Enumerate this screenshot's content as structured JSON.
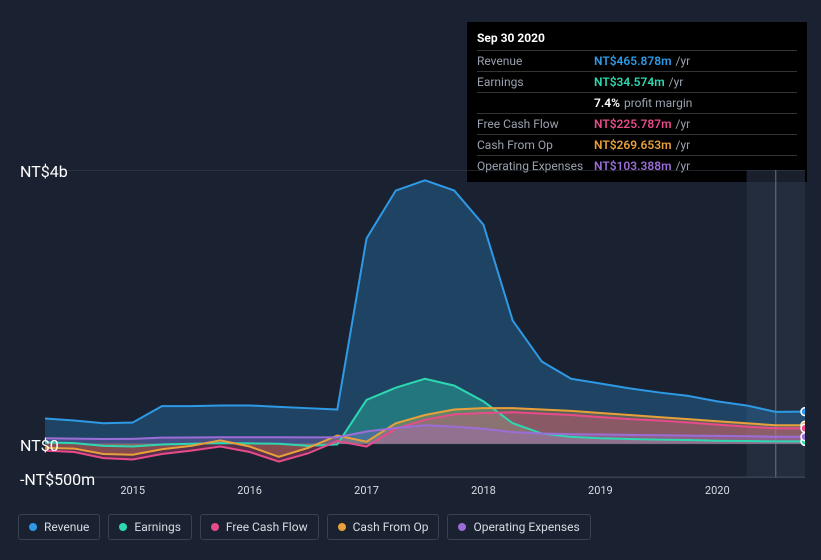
{
  "tooltip": {
    "title": "Sep 30 2020",
    "rows": [
      {
        "label": "Revenue",
        "value": "NT$465.878m",
        "unit": "/yr",
        "color": "#2e9ae6"
      },
      {
        "label": "Earnings",
        "value": "NT$34.574m",
        "unit": "/yr",
        "color": "#2dd8b1"
      },
      {
        "label": "",
        "value": "7.4%",
        "unit": "profit margin",
        "color": "#ffffff"
      },
      {
        "label": "Free Cash Flow",
        "value": "NT$225.787m",
        "unit": "/yr",
        "color": "#e84b8a"
      },
      {
        "label": "Cash From Op",
        "value": "NT$269.653m",
        "unit": "/yr",
        "color": "#e8a13a"
      },
      {
        "label": "Operating Expenses",
        "value": "NT$103.388m",
        "unit": "/yr",
        "color": "#9b6dd7"
      }
    ]
  },
  "chart": {
    "type": "area",
    "background_color": "#1a2231",
    "grid_color": "#3a4252",
    "axis_font_size": 11,
    "currency_prefix": "NT$",
    "ylim": [
      -500,
      4000
    ],
    "y_ticks": [
      {
        "v": 4000,
        "label": "NT$4b"
      },
      {
        "v": 0,
        "label": "NT$0"
      },
      {
        "v": -500,
        "label": "-NT$500m"
      }
    ],
    "x_years": [
      2015,
      2016,
      2017,
      2018,
      2019,
      2020
    ],
    "x_points": [
      "2014-06",
      "2014-09",
      "2014-12",
      "2015-03",
      "2015-06",
      "2015-09",
      "2015-12",
      "2016-03",
      "2016-06",
      "2016-09",
      "2016-12",
      "2017-03",
      "2017-06",
      "2017-09",
      "2017-12",
      "2018-03",
      "2018-06",
      "2018-09",
      "2018-12",
      "2019-03",
      "2019-06",
      "2019-09",
      "2019-12",
      "2020-03",
      "2020-06",
      "2020-09",
      "2020-12"
    ],
    "highlight_start": "2020-06",
    "series": [
      {
        "name": "Revenue",
        "color": "#2e9ae6",
        "fill_opacity": 0.28,
        "line_width": 2,
        "values": [
          370,
          340,
          300,
          310,
          550,
          550,
          560,
          560,
          540,
          520,
          500,
          3000,
          3700,
          3850,
          3700,
          3200,
          1800,
          1200,
          950,
          880,
          810,
          750,
          700,
          620,
          560,
          466,
          470
        ]
      },
      {
        "name": "Earnings",
        "color": "#2dd8b1",
        "fill_opacity": 0.35,
        "line_width": 2,
        "values": [
          20,
          10,
          -30,
          -40,
          -10,
          0,
          10,
          5,
          0,
          -30,
          -10,
          640,
          820,
          950,
          850,
          620,
          300,
          150,
          100,
          80,
          70,
          60,
          55,
          45,
          40,
          35,
          35
        ]
      },
      {
        "name": "Cash From Op",
        "color": "#e8a13a",
        "fill_opacity": 0.32,
        "line_width": 2,
        "values": [
          -60,
          -70,
          -150,
          -160,
          -80,
          -30,
          50,
          -40,
          -190,
          -60,
          120,
          30,
          300,
          420,
          500,
          520,
          520,
          500,
          480,
          450,
          420,
          390,
          360,
          330,
          300,
          270,
          270
        ]
      },
      {
        "name": "Free Cash Flow",
        "color": "#e84b8a",
        "fill_opacity": 0.3,
        "line_width": 2,
        "values": [
          -100,
          -120,
          -210,
          -230,
          -150,
          -100,
          -40,
          -120,
          -260,
          -140,
          40,
          -40,
          220,
          350,
          430,
          450,
          460,
          440,
          420,
          390,
          360,
          340,
          310,
          280,
          250,
          226,
          226
        ]
      },
      {
        "name": "Operating Expenses",
        "color": "#9b6dd7",
        "fill_opacity": 0.3,
        "line_width": 2,
        "values": [
          80,
          75,
          70,
          72,
          90,
          92,
          95,
          96,
          95,
          93,
          95,
          180,
          230,
          270,
          250,
          220,
          170,
          150,
          140,
          135,
          130,
          125,
          120,
          115,
          110,
          103,
          103
        ]
      }
    ],
    "legend": [
      {
        "label": "Revenue",
        "color": "#2e9ae6"
      },
      {
        "label": "Earnings",
        "color": "#2dd8b1"
      },
      {
        "label": "Free Cash Flow",
        "color": "#e84b8a"
      },
      {
        "label": "Cash From Op",
        "color": "#e8a13a"
      },
      {
        "label": "Operating Expenses",
        "color": "#9b6dd7"
      }
    ]
  }
}
